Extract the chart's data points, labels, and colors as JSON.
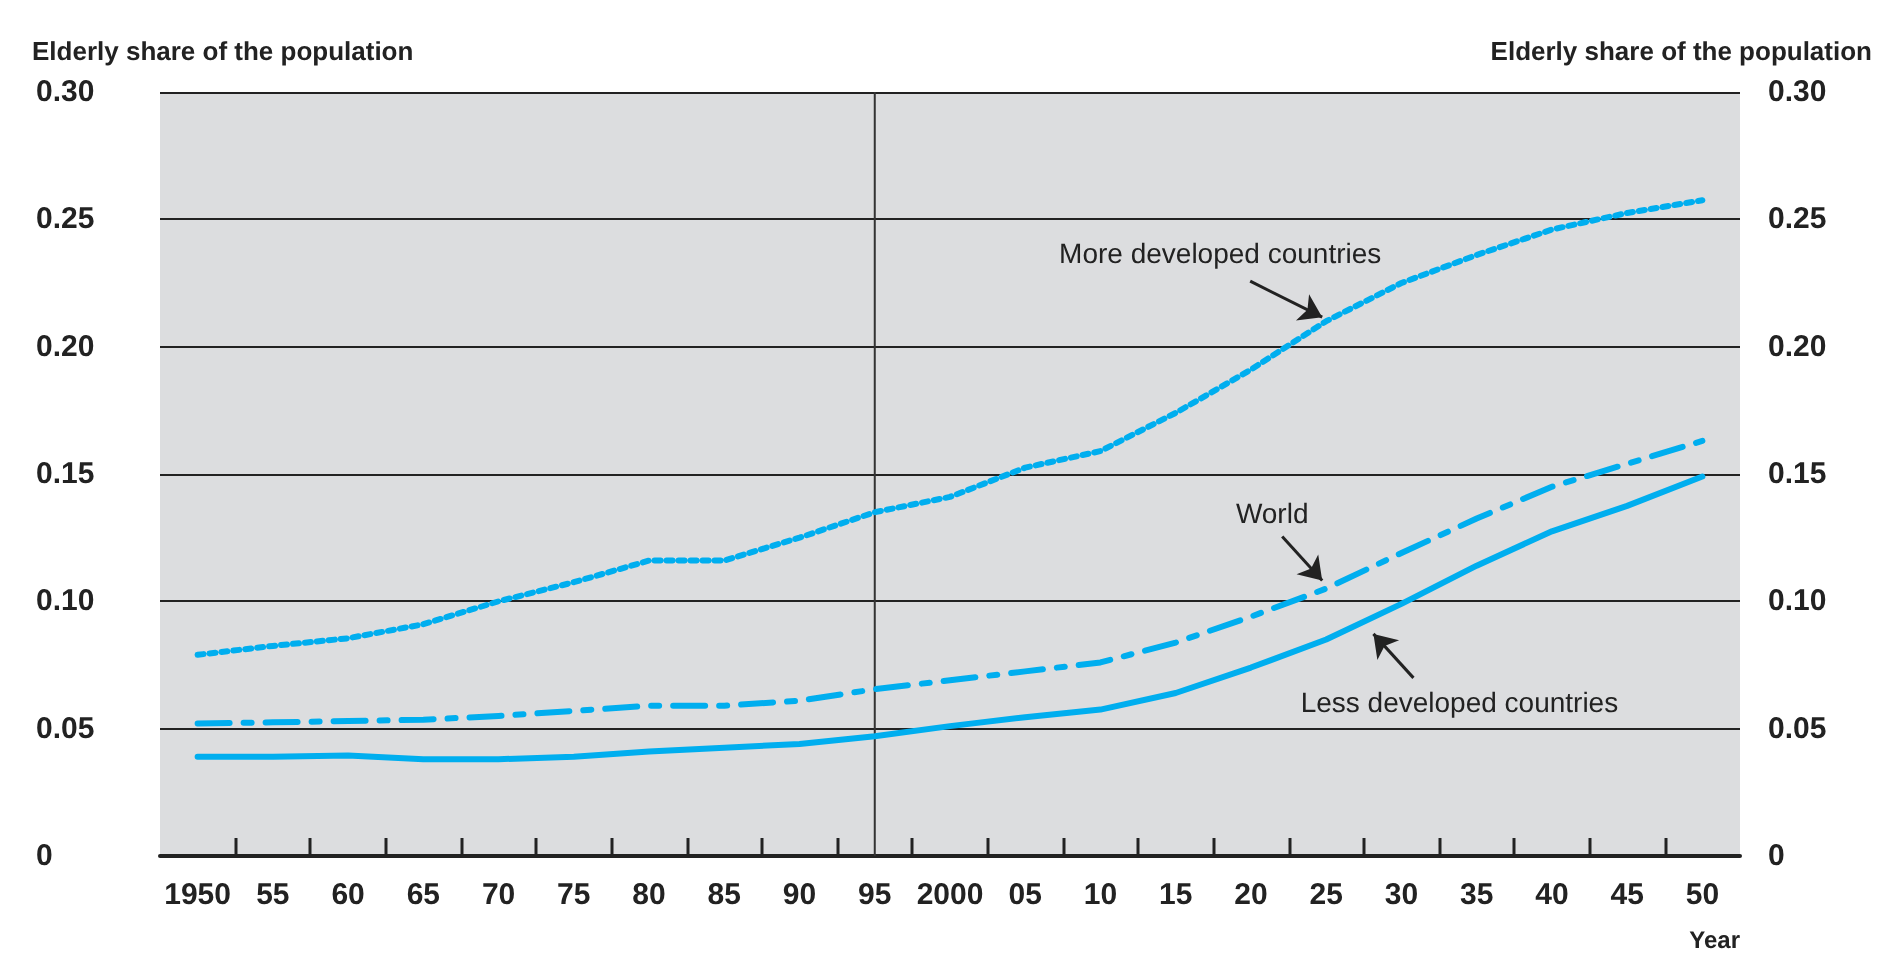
{
  "chart_data": {
    "type": "line",
    "ylabel": "Elderly share of the population",
    "y2label": "Elderly share of the population",
    "xlabel": "Year",
    "x": [
      1950,
      1955,
      1960,
      1965,
      1970,
      1975,
      1980,
      1985,
      1990,
      1995,
      2000,
      2005,
      2010,
      2015,
      2020,
      2025,
      2030,
      2035,
      2040,
      2045,
      2050
    ],
    "series": [
      {
        "name": "More developed countries",
        "color": "#00aeef",
        "line_style": "dotted",
        "values": [
          0.079,
          0.0825,
          0.0855,
          0.091,
          0.1,
          0.1075,
          0.116,
          0.116,
          0.125,
          0.135,
          0.141,
          0.1525,
          0.159,
          0.174,
          0.191,
          0.21,
          0.225,
          0.236,
          0.246,
          0.2525,
          0.2575
        ]
      },
      {
        "name": "World",
        "color": "#00aeef",
        "line_style": "dashed",
        "values": [
          0.052,
          0.0525,
          0.053,
          0.0535,
          0.055,
          0.057,
          0.059,
          0.059,
          0.061,
          0.0655,
          0.069,
          0.0725,
          0.076,
          0.0838,
          0.094,
          0.105,
          0.119,
          0.1325,
          0.145,
          0.154,
          0.163
        ]
      },
      {
        "name": "Less developed countries",
        "color": "#00aeef",
        "line_style": "solid",
        "values": [
          0.039,
          0.039,
          0.0395,
          0.038,
          0.038,
          0.039,
          0.041,
          0.0425,
          0.044,
          0.047,
          0.051,
          0.0545,
          0.0575,
          0.064,
          0.074,
          0.085,
          0.099,
          0.114,
          0.1275,
          0.1375,
          0.149
        ]
      }
    ],
    "ref_lines": [
      {
        "axis": "x",
        "value": 1995,
        "label": null,
        "color": "#333333"
      }
    ],
    "xlim": [
      1947.5,
      2052.5
    ],
    "xticks": [
      {
        "value": 1950,
        "label": "1950"
      },
      {
        "value": 1955,
        "label": "55"
      },
      {
        "value": 1960,
        "label": "60"
      },
      {
        "value": 1965,
        "label": "65"
      },
      {
        "value": 1970,
        "label": "70"
      },
      {
        "value": 1975,
        "label": "75"
      },
      {
        "value": 1980,
        "label": "80"
      },
      {
        "value": 1985,
        "label": "85"
      },
      {
        "value": 1990,
        "label": "90"
      },
      {
        "value": 1995,
        "label": "95"
      },
      {
        "value": 2000,
        "label": "2000"
      },
      {
        "value": 2005,
        "label": "05"
      },
      {
        "value": 2010,
        "label": "10"
      },
      {
        "value": 2015,
        "label": "15"
      },
      {
        "value": 2020,
        "label": "20"
      },
      {
        "value": 2025,
        "label": "25"
      },
      {
        "value": 2030,
        "label": "30"
      },
      {
        "value": 2035,
        "label": "35"
      },
      {
        "value": 2040,
        "label": "40"
      },
      {
        "value": 2045,
        "label": "45"
      },
      {
        "value": 2050,
        "label": "50"
      },
      {
        "value": 1952.5,
        "label": null
      },
      {
        "value": 1957.5,
        "label": null
      },
      {
        "value": 1962.5,
        "label": null
      },
      {
        "value": 1967.5,
        "label": null
      },
      {
        "value": 1972.5,
        "label": null
      },
      {
        "value": 1977.5,
        "label": null
      },
      {
        "value": 1982.5,
        "label": null
      },
      {
        "value": 1987.5,
        "label": null
      },
      {
        "value": 1992.5,
        "label": null
      },
      {
        "value": 1997.5,
        "label": null
      },
      {
        "value": 2002.5,
        "label": null
      },
      {
        "value": 2007.5,
        "label": null
      },
      {
        "value": 2012.5,
        "label": null
      },
      {
        "value": 2017.5,
        "label": null
      },
      {
        "value": 2022.5,
        "label": null
      },
      {
        "value": 2027.5,
        "label": null
      },
      {
        "value": 2032.5,
        "label": null
      },
      {
        "value": 2037.5,
        "label": null
      },
      {
        "value": 2042.5,
        "label": null
      },
      {
        "value": 2047.5,
        "label": null
      }
    ],
    "ylim": [
      0,
      0.3
    ],
    "yticks": [
      {
        "value": 0,
        "label": "0"
      },
      {
        "value": 0.05,
        "label": "0.05"
      },
      {
        "value": 0.1,
        "label": "0.10"
      },
      {
        "value": 0.15,
        "label": "0.15"
      },
      {
        "value": 0.2,
        "label": "0.20"
      },
      {
        "value": 0.25,
        "label": "0.25"
      },
      {
        "value": 0.3,
        "label": "0.30"
      }
    ],
    "y2lim": [
      0,
      0.3
    ],
    "y2ticks": [
      {
        "value": 0,
        "label": "0"
      },
      {
        "value": 0.05,
        "label": "0.05"
      },
      {
        "value": 0.1,
        "label": "0.10"
      },
      {
        "value": 0.15,
        "label": "0.15"
      },
      {
        "value": 0.2,
        "label": "0.20"
      },
      {
        "value": 0.25,
        "label": "0.25"
      },
      {
        "value": 0.3,
        "label": "0.30"
      }
    ],
    "grid": "y",
    "legend": false,
    "marker": "none"
  }
}
